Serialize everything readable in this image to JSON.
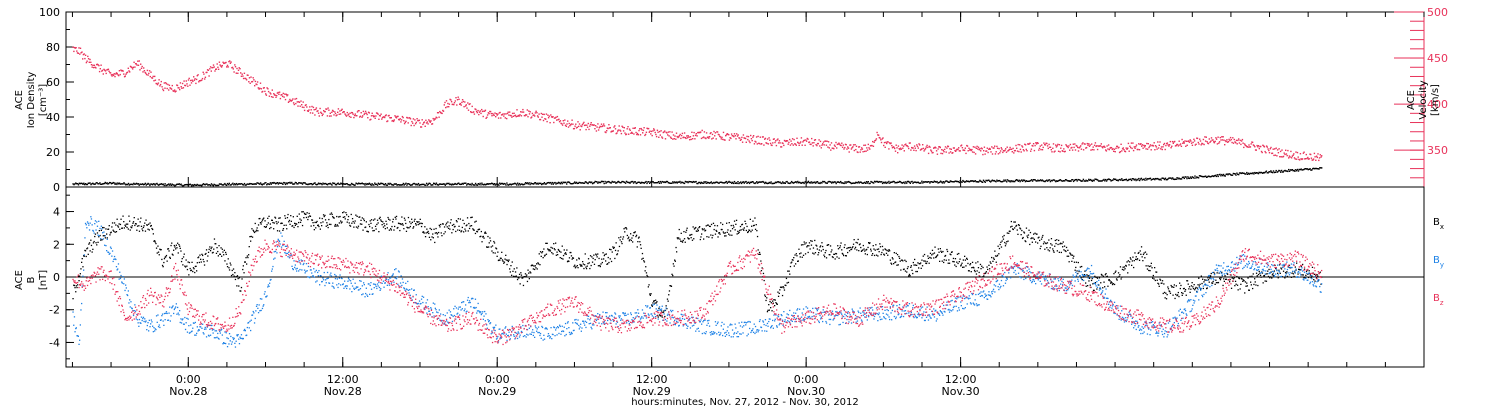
{
  "chart_data": [
    {
      "type": "scatter",
      "panel": "top",
      "left_ylabel": [
        "ACE",
        "Ion Density",
        "[cm⁻³]"
      ],
      "right_ylabel": [
        "ACE",
        "Velocity",
        "[km/s]"
      ],
      "left_ylim": [
        0,
        100
      ],
      "left_yticks": [
        "0",
        "20",
        "40",
        "60",
        "80",
        "100"
      ],
      "right_ylim": [
        310,
        500
      ],
      "right_yticks": [
        "350",
        "400",
        "450",
        "500"
      ],
      "colors": {
        "density": "#000000",
        "velocity": "#e8325a"
      },
      "series": [
        {
          "key": "density",
          "axis": "left",
          "x": [
            -9,
            -6,
            -4,
            0,
            4,
            8,
            12,
            16,
            20,
            24,
            28,
            32,
            36,
            40,
            44,
            48,
            52,
            56,
            60,
            64,
            68,
            72,
            76,
            80,
            84,
            86,
            88
          ],
          "y": [
            2,
            2.5,
            2,
            1.5,
            2,
            2.5,
            2,
            2,
            2,
            2,
            2.5,
            3,
            3,
            3,
            3,
            3,
            3,
            3,
            3.5,
            4,
            4,
            4.5,
            5,
            7,
            9,
            10,
            11
          ]
        },
        {
          "key": "velocity",
          "axis": "right",
          "x": [
            -9,
            -8.5,
            -8,
            -7,
            -6,
            -5,
            -4,
            -3,
            -2,
            -1,
            0,
            1,
            2,
            3,
            4,
            5,
            6,
            7,
            8,
            9,
            10,
            11,
            12,
            14,
            16,
            18,
            19,
            20,
            21,
            22,
            23,
            24,
            26,
            28,
            30,
            32,
            34,
            36,
            38,
            40,
            42,
            44,
            46,
            48,
            50,
            52,
            53,
            53.5,
            54,
            55,
            56,
            58,
            60,
            62,
            64,
            66,
            68,
            70,
            72,
            74,
            76,
            78,
            80,
            82,
            84,
            86,
            88
          ],
          "y": [
            460,
            458,
            450,
            440,
            432,
            435,
            445,
            432,
            420,
            418,
            425,
            430,
            440,
            445,
            435,
            425,
            415,
            410,
            405,
            398,
            392,
            392,
            392,
            388,
            385,
            380,
            383,
            400,
            405,
            395,
            390,
            388,
            392,
            385,
            378,
            375,
            372,
            370,
            365,
            368,
            365,
            362,
            358,
            360,
            355,
            352,
            353,
            370,
            358,
            352,
            355,
            350,
            352,
            350,
            352,
            355,
            352,
            355,
            352,
            356,
            355,
            360,
            362,
            358,
            350,
            345,
            342
          ]
        }
      ]
    },
    {
      "type": "scatter",
      "panel": "bottom",
      "ylabel": [
        "ACE",
        "B",
        "[nT]"
      ],
      "ylim": [
        -5.5,
        5.5
      ],
      "yticks": [
        "-4",
        "-2",
        "0",
        "2",
        "4"
      ],
      "legend": [
        {
          "key": "bx",
          "base": "B",
          "sub": "x"
        },
        {
          "key": "by",
          "base": "B",
          "sub": "y"
        },
        {
          "key": "bz",
          "base": "B",
          "sub": "z"
        }
      ],
      "colors": {
        "bx": "#000000",
        "by": "#1e82e6",
        "bz": "#e8325a"
      },
      "series": [
        {
          "key": "bx",
          "x": [
            -9,
            -8,
            -7,
            -6,
            -5,
            -4,
            -3,
            -2,
            -1,
            0,
            1,
            2,
            3,
            4,
            5,
            6,
            7,
            8,
            9,
            10,
            11,
            12,
            13,
            14,
            16,
            18,
            19,
            20,
            22,
            24,
            26,
            28,
            30,
            32,
            33,
            34,
            35,
            36,
            37,
            38,
            40,
            42,
            44,
            45,
            46,
            47,
            48,
            50,
            52,
            54,
            56,
            58,
            60,
            62,
            64,
            65,
            66,
            68,
            70,
            72,
            74,
            76,
            78,
            80,
            82,
            84,
            86,
            88
          ],
          "y": [
            -1,
            1.5,
            2.5,
            3,
            3.4,
            3.3,
            3,
            1,
            2,
            0.5,
            1,
            2,
            1,
            -0.5,
            3,
            3.4,
            3.2,
            3.5,
            3.6,
            3.3,
            3.5,
            3.6,
            3.4,
            3.2,
            3.3,
            3.2,
            2.5,
            3.1,
            3.3,
            1.5,
            -0.2,
            2,
            1,
            1,
            1.5,
            2.8,
            2.2,
            -1.5,
            -2.5,
            2.5,
            2.8,
            3,
            3.2,
            -2,
            -1,
            1,
            2,
            1.5,
            2,
            1.6,
            0.5,
            1.5,
            1,
            0.3,
            3.2,
            2.6,
            2.2,
            1.8,
            -0.4,
            0,
            1.5,
            -1,
            -0.5,
            0,
            -0.5,
            0.3,
            0.5,
            0
          ]
        },
        {
          "key": "by",
          "x": [
            -9,
            -8.5,
            -8,
            -7.5,
            -7,
            -6,
            -5,
            -4,
            -3,
            -2,
            -1,
            0,
            1,
            2,
            3,
            4,
            5,
            6,
            7,
            8,
            10,
            12,
            14,
            16,
            18,
            20,
            22,
            24,
            26,
            28,
            30,
            32,
            34,
            36,
            38,
            40,
            42,
            44,
            46,
            48,
            50,
            52,
            54,
            56,
            58,
            60,
            62,
            64,
            66,
            68,
            70,
            72,
            74,
            76,
            78,
            80,
            82,
            84,
            86,
            88
          ],
          "y": [
            -2.5,
            -4,
            3.5,
            3.2,
            3,
            1.5,
            -0.5,
            -2.5,
            -3,
            -2.5,
            -2,
            -3,
            -3.2,
            -3.3,
            -3.8,
            -3.9,
            -2.5,
            -1,
            2.5,
            1,
            0,
            -0.3,
            -0.8,
            0.2,
            -1.5,
            -2.5,
            -1.5,
            -3.5,
            -3.2,
            -3.5,
            -3,
            -2.5,
            -2.6,
            -2,
            -2.5,
            -3,
            -3.2,
            -3.1,
            -2.5,
            -2.2,
            -2.5,
            -2.3,
            -2.2,
            -2,
            -2.3,
            -1.5,
            -1.2,
            0.5,
            0,
            -0.5,
            0.5,
            -2,
            -3,
            -3.2,
            -1.5,
            0.5,
            1,
            0.5,
            0.5,
            -0.5
          ]
        },
        {
          "key": "bz",
          "x": [
            -9,
            -8,
            -7,
            -6,
            -5,
            -4,
            -3,
            -2,
            -1,
            0,
            1,
            2,
            3,
            4,
            5,
            6,
            7,
            8,
            9,
            10,
            12,
            14,
            16,
            18,
            20,
            22,
            24,
            26,
            28,
            30,
            32,
            34,
            36,
            38,
            40,
            42,
            44,
            46,
            48,
            50,
            52,
            54,
            56,
            58,
            60,
            62,
            64,
            66,
            68,
            70,
            72,
            74,
            76,
            78,
            80,
            82,
            84,
            86,
            88
          ],
          "y": [
            0,
            -0.5,
            0.3,
            0,
            -2.5,
            -2,
            -1,
            -1.5,
            0.5,
            -2,
            -2.5,
            -2.8,
            -3,
            -2,
            1,
            2,
            1.8,
            1.5,
            1.2,
            1,
            0.8,
            0.5,
            -0.5,
            -2,
            -3,
            -2.5,
            -3.8,
            -3,
            -2,
            -1.5,
            -2.8,
            -3,
            -2.5,
            -2.5,
            -2.2,
            0.5,
            1.5,
            -3,
            -2.5,
            -2,
            -2.6,
            -1.5,
            -2,
            -1.8,
            -1,
            0,
            1,
            0,
            -0.5,
            -1,
            -2,
            -2.5,
            -3,
            -2.8,
            -1.5,
            1.5,
            1,
            1.2,
            0.2
          ]
        }
      ]
    }
  ],
  "x_axis": {
    "range": [
      -9.5,
      96
    ],
    "ticks": [
      {
        "x": 0,
        "time": "0:00",
        "date": "Nov.28"
      },
      {
        "x": 12,
        "time": "12:00",
        "date": "Nov.28"
      },
      {
        "x": 24,
        "time": "0:00",
        "date": "Nov.29"
      },
      {
        "x": 36,
        "time": "12:00",
        "date": "Nov.29"
      },
      {
        "x": 48,
        "time": "0:00",
        "date": "Nov.30"
      },
      {
        "x": 60,
        "time": "12:00",
        "date": "Nov.30"
      }
    ],
    "label": "hours:minutes, Nov. 27, 2012 - Nov. 30, 2012"
  }
}
